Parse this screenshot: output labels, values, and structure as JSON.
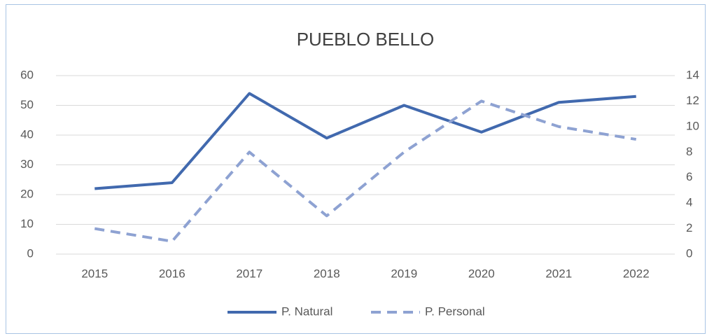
{
  "chart_data": {
    "type": "line",
    "title": "PUEBLO BELLO",
    "categories": [
      "2015",
      "2016",
      "2017",
      "2018",
      "2019",
      "2020",
      "2021",
      "2022"
    ],
    "series": [
      {
        "name": "P. Natural",
        "color": "#4169ae",
        "values": [
          22,
          24,
          54,
          39,
          50,
          41,
          51,
          53
        ]
      },
      {
        "name": "P. Personal",
        "color": "#8ea2d2",
        "axis": "y2",
        "dashed": true,
        "values": [
          2,
          1,
          8,
          3,
          8,
          12,
          10,
          9
        ]
      }
    ],
    "ylim": [
      0,
      60
    ],
    "yticks": [
      0,
      10,
      20,
      30,
      40,
      50,
      60
    ],
    "y2lim": [
      0,
      14
    ],
    "y2ticks": [
      0,
      2,
      4,
      6,
      8,
      10,
      12,
      14
    ],
    "grid": true,
    "legend": "bottom"
  }
}
